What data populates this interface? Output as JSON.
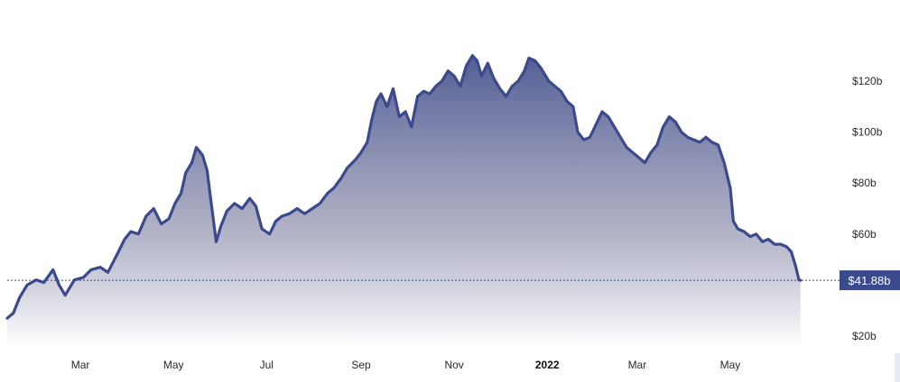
{
  "chart_data": {
    "type": "area",
    "title": "",
    "xlabel": "",
    "ylabel": "",
    "x_tick_labels": [
      {
        "label": "Mar",
        "date": "2021-03-01",
        "bold": false
      },
      {
        "label": "May",
        "date": "2021-05-01",
        "bold": false
      },
      {
        "label": "Jul",
        "date": "2021-07-01",
        "bold": false
      },
      {
        "label": "Sep",
        "date": "2021-09-01",
        "bold": false
      },
      {
        "label": "Nov",
        "date": "2021-11-01",
        "bold": false
      },
      {
        "label": "2022",
        "date": "2022-01-01",
        "bold": true
      },
      {
        "label": "Mar",
        "date": "2022-03-01",
        "bold": false
      },
      {
        "label": "May",
        "date": "2022-05-01",
        "bold": false
      }
    ],
    "y_ticks": [
      {
        "label": "$20b",
        "value": 20
      },
      {
        "label": "$60b",
        "value": 60
      },
      {
        "label": "$80b",
        "value": 80
      },
      {
        "label": "$100b",
        "value": 100
      },
      {
        "label": "$120b",
        "value": 120
      }
    ],
    "xlim": [
      "2021-01-12",
      "2022-06-28"
    ],
    "ylim": [
      17,
      141
    ],
    "grid": false,
    "current_value": {
      "label": "$41.88b",
      "value": 41.88
    },
    "colors": {
      "line": "#3b4a8c",
      "fill_top": "#4e5a92",
      "fill_bottom": "#ffffff",
      "badge": "#3b4a8c",
      "badge_text": "#ffffff"
    },
    "series": [
      {
        "values": [
          [
            "2021-01-12",
            27
          ],
          [
            "2021-01-16",
            29
          ],
          [
            "2021-01-20",
            35
          ],
          [
            "2021-01-25",
            40
          ],
          [
            "2021-01-31",
            42
          ],
          [
            "2021-02-05",
            41
          ],
          [
            "2021-02-11",
            46
          ],
          [
            "2021-02-15",
            40
          ],
          [
            "2021-02-19",
            36
          ],
          [
            "2021-02-25",
            42
          ],
          [
            "2021-03-03",
            43
          ],
          [
            "2021-03-08",
            46
          ],
          [
            "2021-03-14",
            47
          ],
          [
            "2021-03-19",
            45
          ],
          [
            "2021-03-25",
            52
          ],
          [
            "2021-03-30",
            58
          ],
          [
            "2021-04-03",
            61
          ],
          [
            "2021-04-08",
            60
          ],
          [
            "2021-04-13",
            67
          ],
          [
            "2021-04-18",
            70
          ],
          [
            "2021-04-23",
            64
          ],
          [
            "2021-04-28",
            66
          ],
          [
            "2021-05-02",
            72
          ],
          [
            "2021-05-06",
            76
          ],
          [
            "2021-05-09",
            84
          ],
          [
            "2021-05-13",
            88
          ],
          [
            "2021-05-16",
            94
          ],
          [
            "2021-05-20",
            91
          ],
          [
            "2021-05-23",
            85
          ],
          [
            "2021-05-26",
            71
          ],
          [
            "2021-05-29",
            57
          ],
          [
            "2021-06-01",
            63
          ],
          [
            "2021-06-05",
            69
          ],
          [
            "2021-06-10",
            72
          ],
          [
            "2021-06-15",
            70
          ],
          [
            "2021-06-20",
            74
          ],
          [
            "2021-06-24",
            71
          ],
          [
            "2021-06-28",
            62
          ],
          [
            "2021-07-03",
            60
          ],
          [
            "2021-07-07",
            65
          ],
          [
            "2021-07-11",
            67
          ],
          [
            "2021-07-16",
            68
          ],
          [
            "2021-07-21",
            70
          ],
          [
            "2021-07-26",
            68
          ],
          [
            "2021-07-31",
            70
          ],
          [
            "2021-08-05",
            72
          ],
          [
            "2021-08-10",
            76
          ],
          [
            "2021-08-14",
            78
          ],
          [
            "2021-08-19",
            82
          ],
          [
            "2021-08-23",
            86
          ],
          [
            "2021-08-28",
            89
          ],
          [
            "2021-09-01",
            92
          ],
          [
            "2021-09-05",
            96
          ],
          [
            "2021-09-08",
            105
          ],
          [
            "2021-09-11",
            112
          ],
          [
            "2021-09-14",
            115
          ],
          [
            "2021-09-18",
            110
          ],
          [
            "2021-09-22",
            117
          ],
          [
            "2021-09-26",
            106
          ],
          [
            "2021-09-30",
            108
          ],
          [
            "2021-10-04",
            102
          ],
          [
            "2021-10-08",
            114
          ],
          [
            "2021-10-12",
            116
          ],
          [
            "2021-10-16",
            115
          ],
          [
            "2021-10-20",
            118
          ],
          [
            "2021-10-24",
            120
          ],
          [
            "2021-10-28",
            124
          ],
          [
            "2021-11-01",
            122
          ],
          [
            "2021-11-05",
            118
          ],
          [
            "2021-11-09",
            126
          ],
          [
            "2021-11-13",
            130
          ],
          [
            "2021-11-16",
            128
          ],
          [
            "2021-11-19",
            122
          ],
          [
            "2021-11-23",
            127
          ],
          [
            "2021-11-27",
            121
          ],
          [
            "2021-12-01",
            117
          ],
          [
            "2021-12-05",
            114
          ],
          [
            "2021-12-09",
            118
          ],
          [
            "2021-12-13",
            120
          ],
          [
            "2021-12-17",
            124
          ],
          [
            "2021-12-20",
            129
          ],
          [
            "2021-12-24",
            128
          ],
          [
            "2021-12-28",
            125
          ],
          [
            "2022-01-02",
            120
          ],
          [
            "2022-01-06",
            118
          ],
          [
            "2022-01-10",
            116
          ],
          [
            "2022-01-14",
            112
          ],
          [
            "2022-01-18",
            110
          ],
          [
            "2022-01-21",
            100
          ],
          [
            "2022-01-25",
            97
          ],
          [
            "2022-01-29",
            98
          ],
          [
            "2022-02-02",
            103
          ],
          [
            "2022-02-06",
            108
          ],
          [
            "2022-02-10",
            106
          ],
          [
            "2022-02-14",
            102
          ],
          [
            "2022-02-18",
            98
          ],
          [
            "2022-02-22",
            94
          ],
          [
            "2022-02-26",
            92
          ],
          [
            "2022-03-02",
            90
          ],
          [
            "2022-03-06",
            88
          ],
          [
            "2022-03-10",
            92
          ],
          [
            "2022-03-14",
            95
          ],
          [
            "2022-03-18",
            102
          ],
          [
            "2022-03-22",
            106
          ],
          [
            "2022-03-26",
            104
          ],
          [
            "2022-03-30",
            100
          ],
          [
            "2022-04-03",
            98
          ],
          [
            "2022-04-07",
            97
          ],
          [
            "2022-04-11",
            96
          ],
          [
            "2022-04-15",
            98
          ],
          [
            "2022-04-19",
            96
          ],
          [
            "2022-04-23",
            95
          ],
          [
            "2022-04-27",
            88
          ],
          [
            "2022-05-01",
            78
          ],
          [
            "2022-05-03",
            65
          ],
          [
            "2022-05-06",
            62
          ],
          [
            "2022-05-10",
            61
          ],
          [
            "2022-05-14",
            59
          ],
          [
            "2022-05-18",
            60
          ],
          [
            "2022-05-22",
            57
          ],
          [
            "2022-05-26",
            58
          ],
          [
            "2022-05-30",
            56
          ],
          [
            "2022-06-03",
            56
          ],
          [
            "2022-06-07",
            55
          ],
          [
            "2022-06-10",
            53
          ],
          [
            "2022-06-13",
            47
          ],
          [
            "2022-06-15",
            42
          ],
          [
            "2022-06-16",
            41.88
          ]
        ]
      }
    ]
  }
}
